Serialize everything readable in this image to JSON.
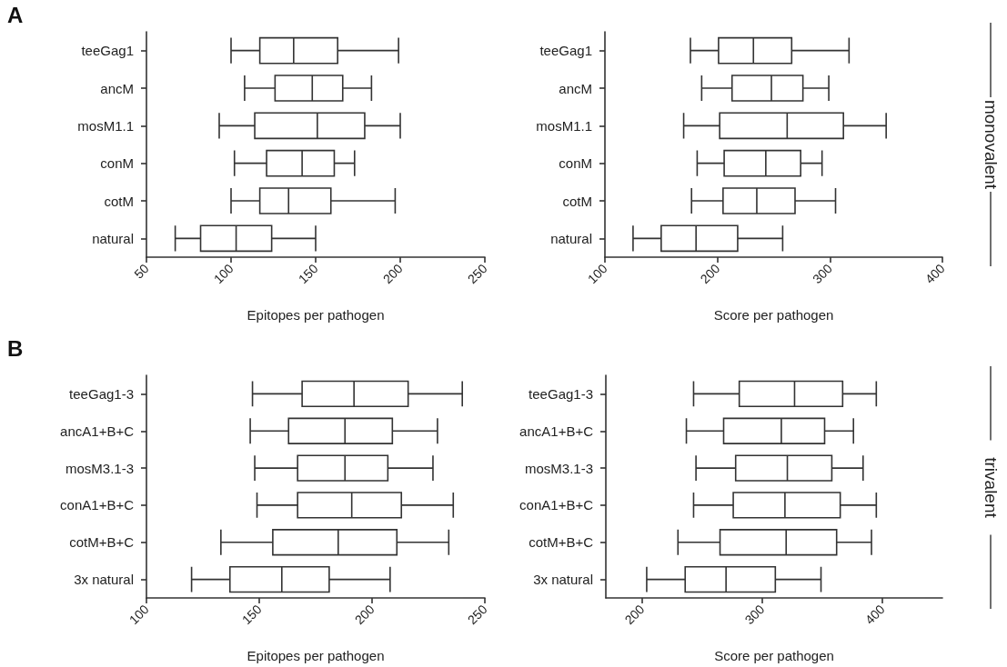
{
  "chart_data": [
    {
      "type": "box",
      "orientation": "horizontal",
      "categories": [
        "teeGag1",
        "ancM",
        "mosM1.1",
        "conM",
        "cotM",
        "natural"
      ],
      "xlabel": "Epitopes per pathogen",
      "xlim": [
        50,
        250
      ],
      "xticks": [
        50,
        100,
        150,
        200,
        250
      ],
      "annotations": [
        "A"
      ],
      "boxes": [
        {
          "low": 100,
          "q1": 117,
          "median": 137,
          "q3": 163,
          "high": 199
        },
        {
          "low": 108,
          "q1": 126,
          "median": 148,
          "q3": 166,
          "high": 183
        },
        {
          "low": 93,
          "q1": 114,
          "median": 151,
          "q3": 179,
          "high": 200
        },
        {
          "low": 102,
          "q1": 121,
          "median": 142,
          "q3": 161,
          "high": 173
        },
        {
          "low": 100,
          "q1": 117,
          "median": 134,
          "q3": 159,
          "high": 197
        },
        {
          "low": 67,
          "q1": 82,
          "median": 103,
          "q3": 124,
          "high": 150
        }
      ]
    },
    {
      "type": "box",
      "orientation": "horizontal",
      "categories": [
        "teeGag1",
        "ancM",
        "mosM1.1",
        "conM",
        "cotM",
        "natural"
      ],
      "xlabel": "Score per pathogen",
      "xlim": [
        100,
        400
      ],
      "xticks": [
        100,
        200,
        300,
        400
      ],
      "annotations": [
        "monovalent"
      ],
      "boxes": [
        {
          "low": 176,
          "q1": 201,
          "median": 232,
          "q3": 266,
          "high": 317
        },
        {
          "low": 186,
          "q1": 213,
          "median": 248,
          "q3": 276,
          "high": 299
        },
        {
          "low": 170,
          "q1": 202,
          "median": 262,
          "q3": 312,
          "high": 350
        },
        {
          "low": 182,
          "q1": 206,
          "median": 243,
          "q3": 274,
          "high": 293
        },
        {
          "low": 177,
          "q1": 205,
          "median": 235,
          "q3": 269,
          "high": 305
        },
        {
          "low": 125,
          "q1": 150,
          "median": 181,
          "q3": 218,
          "high": 258
        }
      ]
    },
    {
      "type": "box",
      "orientation": "horizontal",
      "categories": [
        "teeGag1-3",
        "ancA1+B+C",
        "mosM3.1-3",
        "conA1+B+C",
        "cotM+B+C",
        "3x natural"
      ],
      "xlabel": "Epitopes per pathogen",
      "xlim": [
        100,
        250
      ],
      "xticks": [
        100,
        150,
        200,
        250
      ],
      "annotations": [
        "B"
      ],
      "boxes": [
        {
          "low": 147,
          "q1": 169,
          "median": 192,
          "q3": 216,
          "high": 240
        },
        {
          "low": 146,
          "q1": 163,
          "median": 188,
          "q3": 209,
          "high": 229
        },
        {
          "low": 148,
          "q1": 167,
          "median": 188,
          "q3": 207,
          "high": 227
        },
        {
          "low": 149,
          "q1": 167,
          "median": 191,
          "q3": 213,
          "high": 236
        },
        {
          "low": 133,
          "q1": 156,
          "median": 185,
          "q3": 211,
          "high": 234
        },
        {
          "low": 120,
          "q1": 137,
          "median": 160,
          "q3": 181,
          "high": 208
        }
      ]
    },
    {
      "type": "box",
      "orientation": "horizontal",
      "categories": [
        "teeGag1-3",
        "ancA1+B+C",
        "mosM3.1-3",
        "conA1+B+C",
        "cotM+B+C",
        "3x natural"
      ],
      "xlabel": "Score per pathogen",
      "xlim": [
        170,
        450
      ],
      "xticks": [
        200,
        300,
        400
      ],
      "annotations": [
        "trivalent"
      ],
      "boxes": [
        {
          "low": 243,
          "q1": 281,
          "median": 327,
          "q3": 367,
          "high": 395
        },
        {
          "low": 237,
          "q1": 268,
          "median": 316,
          "q3": 352,
          "high": 376
        },
        {
          "low": 245,
          "q1": 278,
          "median": 321,
          "q3": 358,
          "high": 384
        },
        {
          "low": 243,
          "q1": 276,
          "median": 319,
          "q3": 365,
          "high": 395
        },
        {
          "low": 230,
          "q1": 265,
          "median": 320,
          "q3": 362,
          "high": 391
        },
        {
          "low": 204,
          "q1": 236,
          "median": 270,
          "q3": 311,
          "high": 349
        }
      ]
    }
  ]
}
